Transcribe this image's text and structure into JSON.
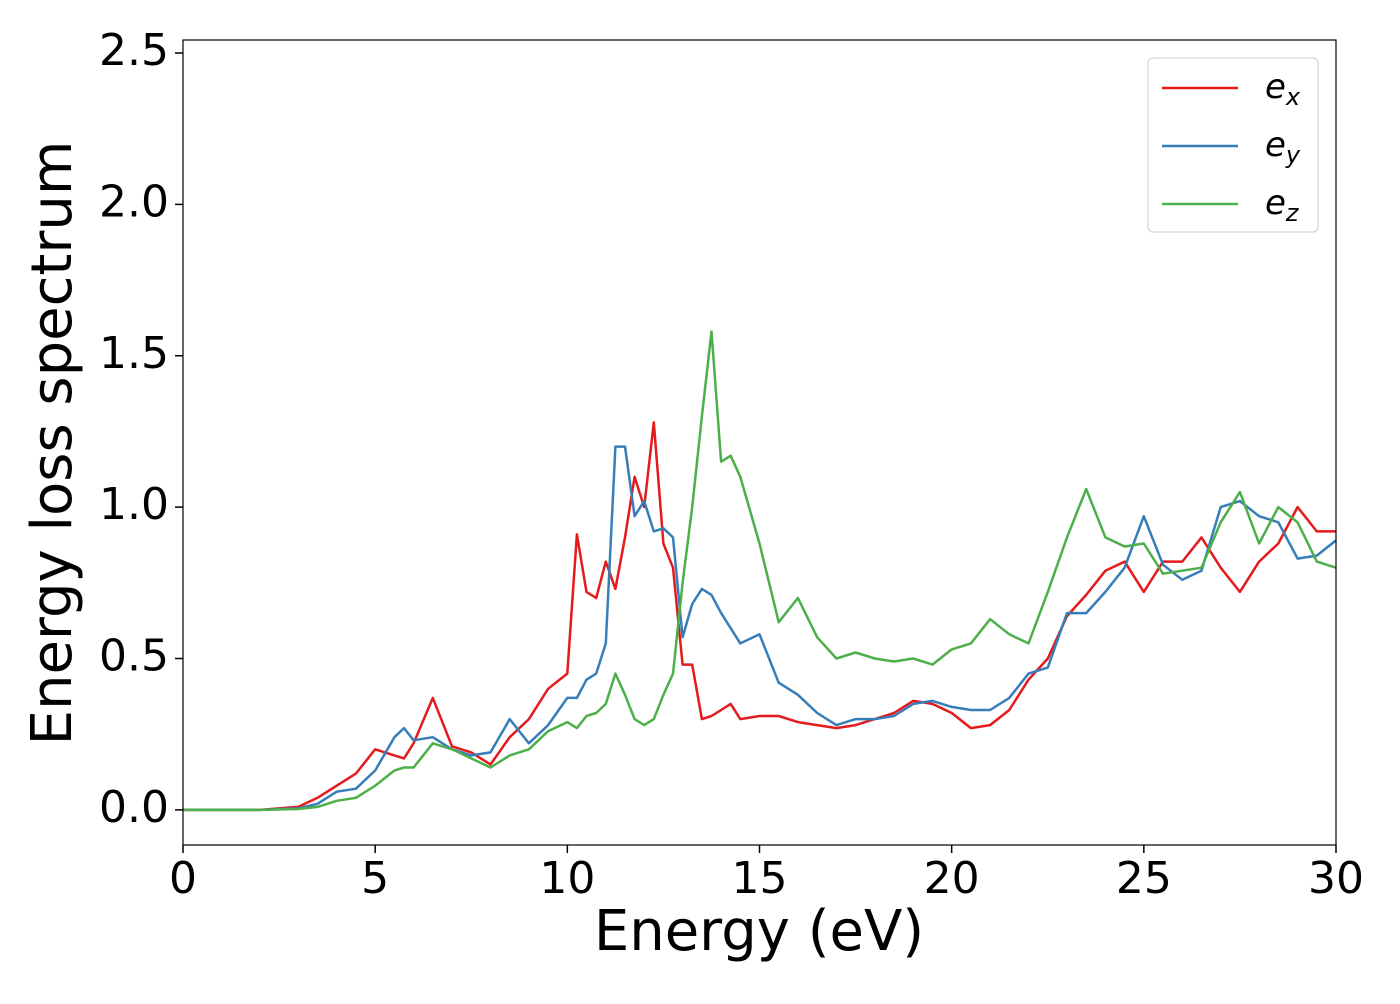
{
  "chart_data": {
    "type": "line",
    "xlabel": "Energy (eV)",
    "ylabel": "Energy loss spectrum",
    "x": [
      0,
      1,
      2,
      3,
      3.5,
      4,
      4.5,
      5,
      5.5,
      5.75,
      6,
      6.5,
      7,
      7.5,
      8,
      8.5,
      9,
      9.5,
      10,
      10.25,
      10.5,
      10.75,
      11,
      11.25,
      11.5,
      11.75,
      12,
      12.25,
      12.5,
      12.75,
      13,
      13.25,
      13.5,
      13.75,
      14,
      14.25,
      14.5,
      15,
      15.5,
      16,
      16.5,
      17,
      17.5,
      18,
      18.5,
      19,
      19.5,
      20,
      20.5,
      21,
      21.5,
      22,
      22.5,
      23,
      23.5,
      24,
      24.5,
      25,
      25.5,
      26,
      26.5,
      27,
      27.5,
      28,
      28.5,
      29,
      29.5,
      30
    ],
    "series": [
      {
        "name": "ex",
        "color": "#e41a1c",
        "values": [
          0,
          0,
          0,
          0.01,
          0.04,
          0.08,
          0.12,
          0.2,
          0.18,
          0.17,
          0.22,
          0.37,
          0.21,
          0.19,
          0.15,
          0.24,
          0.3,
          0.4,
          0.45,
          0.91,
          0.72,
          0.7,
          0.82,
          0.73,
          0.9,
          1.1,
          1.0,
          1.28,
          0.88,
          0.8,
          0.48,
          0.48,
          0.3,
          0.31,
          0.33,
          0.35,
          0.3,
          0.31,
          0.31,
          0.29,
          0.28,
          0.27,
          0.28,
          0.3,
          0.32,
          0.36,
          0.35,
          0.32,
          0.27,
          0.28,
          0.33,
          0.43,
          0.5,
          0.64,
          0.71,
          0.79,
          0.82,
          0.72,
          0.82,
          0.82,
          0.9,
          0.8,
          0.72,
          0.82,
          0.88,
          1.0,
          0.92,
          0.92
        ]
      },
      {
        "name": "ey",
        "color": "#377eb8",
        "values": [
          0,
          0,
          0,
          0.005,
          0.02,
          0.06,
          0.07,
          0.13,
          0.24,
          0.27,
          0.23,
          0.24,
          0.2,
          0.18,
          0.19,
          0.3,
          0.22,
          0.28,
          0.37,
          0.37,
          0.43,
          0.45,
          0.55,
          1.2,
          1.2,
          0.97,
          1.02,
          0.92,
          0.93,
          0.9,
          0.57,
          0.68,
          0.73,
          0.71,
          0.65,
          0.6,
          0.55,
          0.58,
          0.42,
          0.38,
          0.32,
          0.28,
          0.3,
          0.3,
          0.31,
          0.35,
          0.36,
          0.34,
          0.33,
          0.33,
          0.37,
          0.45,
          0.47,
          0.65,
          0.65,
          0.72,
          0.8,
          0.97,
          0.81,
          0.76,
          0.79,
          1.0,
          1.02,
          0.97,
          0.95,
          0.83,
          0.84,
          0.89
        ]
      },
      {
        "name": "ez",
        "color": "#4daf4a",
        "values": [
          0,
          0,
          0,
          0.003,
          0.01,
          0.03,
          0.04,
          0.08,
          0.13,
          0.14,
          0.14,
          0.22,
          0.2,
          0.17,
          0.14,
          0.18,
          0.2,
          0.26,
          0.29,
          0.27,
          0.31,
          0.32,
          0.35,
          0.45,
          0.38,
          0.3,
          0.28,
          0.3,
          0.38,
          0.45,
          0.75,
          1.0,
          1.3,
          1.58,
          1.15,
          1.17,
          1.1,
          0.88,
          0.62,
          0.7,
          0.57,
          0.5,
          0.52,
          0.5,
          0.49,
          0.5,
          0.48,
          0.53,
          0.55,
          0.63,
          0.58,
          0.55,
          0.72,
          0.9,
          1.06,
          0.9,
          0.87,
          0.88,
          0.78,
          0.79,
          0.8,
          0.95,
          1.05,
          0.88,
          1.0,
          0.95,
          0.82,
          0.8
        ]
      }
    ],
    "xlim": [
      0,
      30
    ],
    "ylim": [
      -0.116,
      2.543
    ],
    "xticks": [
      0,
      5,
      10,
      15,
      20,
      25,
      30
    ],
    "yticks": [
      {
        "value": 0,
        "label": "0.0"
      },
      0.5,
      {
        "value": 1,
        "label": "1.0"
      },
      1.5,
      {
        "value": 2,
        "label": "2.0"
      },
      2.5
    ],
    "grid": false,
    "legend": "upper right"
  }
}
